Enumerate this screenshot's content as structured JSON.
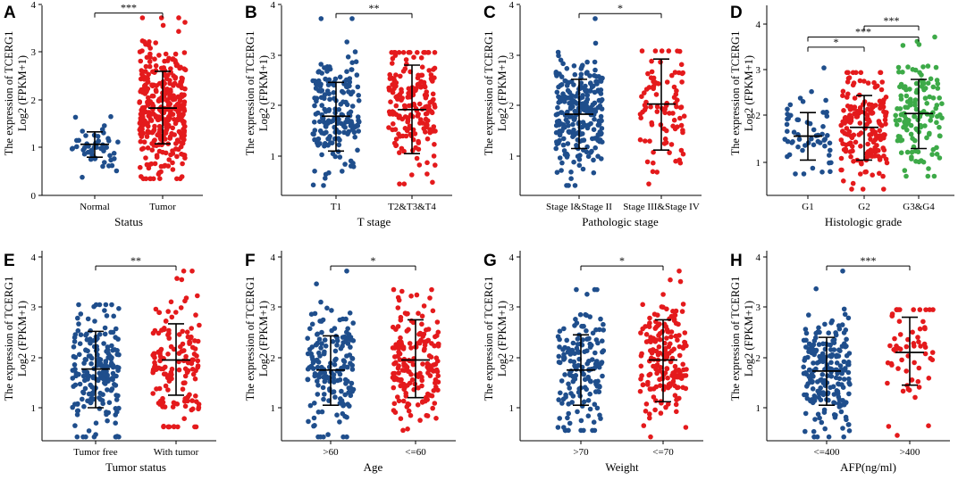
{
  "colors": {
    "blue": "#1f4e8c",
    "red": "#e41a1c",
    "green": "#3daa48",
    "axis": "#000000"
  },
  "chart_data": [
    {
      "type": "scatter",
      "panel": "A",
      "title": "",
      "ylabel_main": "The expression  of TCERG1",
      "ylabel_sub": "Log2 (FPKM+1)",
      "xlabel": "Status",
      "yticks": [
        0,
        1,
        2,
        3,
        4
      ],
      "ylim": [
        0,
        4
      ],
      "groups": [
        {
          "name": "Normal",
          "color": "blue",
          "n": 50,
          "mean": 1.07,
          "sd": 0.28,
          "min": 0.38,
          "max": 1.65,
          "err_low": 0.8,
          "err_high": 1.33
        },
        {
          "name": "Tumor",
          "color": "red",
          "n": 370,
          "mean": 1.83,
          "sd": 0.68,
          "min": 0.35,
          "max": 3.72,
          "err_low": 1.08,
          "err_high": 2.6
        }
      ],
      "significance": [
        {
          "from": 0,
          "to": 1,
          "label": "***",
          "y": 3.82
        }
      ]
    },
    {
      "type": "scatter",
      "panel": "B",
      "title": "",
      "ylabel_main": "The expression  of TCERG1",
      "ylabel_sub": "Log2 (FPKM+1)",
      "xlabel": "T stage",
      "yticks": [
        1,
        2,
        3,
        4
      ],
      "ylim": [
        0.4,
        4
      ],
      "groups": [
        {
          "name": "T1",
          "color": "blue",
          "n": 180,
          "mean": 1.79,
          "sd": 0.6,
          "min": 0.42,
          "max": 3.72,
          "err_low": 1.1,
          "err_high": 2.46
        },
        {
          "name": "T2&T3&T4",
          "color": "red",
          "n": 190,
          "mean": 1.92,
          "sd": 0.62,
          "min": 0.45,
          "max": 3.05,
          "err_low": 1.05,
          "err_high": 2.8
        }
      ],
      "significance": [
        {
          "from": 0,
          "to": 1,
          "label": "**",
          "y": 3.82
        }
      ]
    },
    {
      "type": "scatter",
      "panel": "C",
      "title": "",
      "ylabel_main": "The expression  of TCERG1",
      "ylabel_sub": "Log2 (FPKM+1)",
      "xlabel": "Pathologic stage",
      "yticks": [
        1,
        2,
        3,
        4
      ],
      "ylim": [
        0.4,
        4
      ],
      "groups": [
        {
          "name": "Stage I&Stage II",
          "color": "blue",
          "n": 255,
          "mean": 1.83,
          "sd": 0.6,
          "min": 0.42,
          "max": 3.72,
          "err_low": 1.15,
          "err_high": 2.52
        },
        {
          "name": "Stage III&Stage IV",
          "color": "red",
          "n": 90,
          "mean": 2.03,
          "sd": 0.6,
          "min": 0.45,
          "max": 3.08,
          "err_low": 1.12,
          "err_high": 2.92
        }
      ],
      "significance": [
        {
          "from": 0,
          "to": 1,
          "label": "*",
          "y": 3.82
        }
      ]
    },
    {
      "type": "scatter",
      "panel": "D",
      "title": "",
      "ylabel_main": "The expression  of TCERG1",
      "ylabel_sub": "Log2 (FPKM+1)",
      "xlabel": "Histologic grade",
      "yticks": [
        1,
        2,
        3,
        4
      ],
      "ylim": [
        0.4,
        4.3
      ],
      "groups": [
        {
          "name": "G1",
          "color": "blue",
          "n": 55,
          "mean": 1.57,
          "sd": 0.45,
          "min": 0.75,
          "max": 3.05,
          "err_low": 1.05,
          "err_high": 2.08
        },
        {
          "name": "G2",
          "color": "red",
          "n": 175,
          "mean": 1.76,
          "sd": 0.6,
          "min": 0.42,
          "max": 2.95,
          "err_low": 1.05,
          "err_high": 2.45
        },
        {
          "name": "G3&G4",
          "color": "green",
          "n": 135,
          "mean": 2.06,
          "sd": 0.6,
          "min": 0.7,
          "max": 3.72,
          "err_low": 1.3,
          "err_high": 2.8
        }
      ],
      "significance": [
        {
          "from": 0,
          "to": 1,
          "label": "*",
          "y": 3.5
        },
        {
          "from": 0,
          "to": 2,
          "label": "***",
          "y": 3.72
        },
        {
          "from": 1,
          "to": 2,
          "label": "***",
          "y": 3.96
        }
      ]
    },
    {
      "type": "scatter",
      "panel": "E",
      "title": "",
      "ylabel_main": "The expression  of TCERG1",
      "ylabel_sub": "Log2 (FPKM+1)",
      "xlabel": "Tumor status",
      "yticks": [
        1,
        2,
        3,
        4
      ],
      "ylim": [
        0.4,
        4
      ],
      "groups": [
        {
          "name": "Tumor free",
          "color": "blue",
          "n": 200,
          "mean": 1.77,
          "sd": 0.6,
          "min": 0.42,
          "max": 3.05,
          "err_low": 1.0,
          "err_high": 2.52
        },
        {
          "name": "With tumor",
          "color": "red",
          "n": 150,
          "mean": 1.95,
          "sd": 0.62,
          "min": 0.62,
          "max": 3.72,
          "err_low": 1.25,
          "err_high": 2.67
        }
      ],
      "significance": [
        {
          "from": 0,
          "to": 1,
          "label": "**",
          "y": 3.82
        }
      ]
    },
    {
      "type": "scatter",
      "panel": "F",
      "title": "",
      "ylabel_main": "The expression  of TCERG1",
      "ylabel_sub": "Log2 (FPKM+1)",
      "xlabel": "Age",
      "yticks": [
        1,
        2,
        3,
        4
      ],
      "ylim": [
        0.4,
        4
      ],
      "groups": [
        {
          "name": ">60",
          "color": "blue",
          "n": 170,
          "mean": 1.75,
          "sd": 0.6,
          "min": 0.42,
          "max": 3.72,
          "err_low": 1.05,
          "err_high": 2.43
        },
        {
          "name": "<=60",
          "color": "red",
          "n": 180,
          "mean": 1.95,
          "sd": 0.62,
          "min": 0.55,
          "max": 3.35,
          "err_low": 1.2,
          "err_high": 2.75
        }
      ],
      "significance": [
        {
          "from": 0,
          "to": 1,
          "label": "*",
          "y": 3.82
        }
      ]
    },
    {
      "type": "scatter",
      "panel": "G",
      "title": "",
      "ylabel_main": "The expression  of TCERG1",
      "ylabel_sub": "Log2 (FPKM+1)",
      "xlabel": "Weight",
      "yticks": [
        1,
        2,
        3,
        4
      ],
      "ylim": [
        0.4,
        4
      ],
      "groups": [
        {
          "name": ">70",
          "color": "blue",
          "n": 160,
          "mean": 1.75,
          "sd": 0.6,
          "min": 0.55,
          "max": 3.35,
          "err_low": 1.05,
          "err_high": 2.45
        },
        {
          "name": "<=70",
          "color": "red",
          "n": 175,
          "mean": 1.95,
          "sd": 0.62,
          "min": 0.42,
          "max": 3.72,
          "err_low": 1.12,
          "err_high": 2.75
        }
      ],
      "significance": [
        {
          "from": 0,
          "to": 1,
          "label": "*",
          "y": 3.82
        }
      ]
    },
    {
      "type": "scatter",
      "panel": "H",
      "title": "",
      "ylabel_main": "The expression  of TCERG1",
      "ylabel_sub": "Log2 (FPKM+1)",
      "xlabel": "AFP(ng/ml)",
      "yticks": [
        1,
        2,
        3,
        4
      ],
      "ylim": [
        0.4,
        4
      ],
      "groups": [
        {
          "name": "<=400",
          "color": "blue",
          "n": 210,
          "mean": 1.73,
          "sd": 0.6,
          "min": 0.42,
          "max": 3.72,
          "err_low": 1.05,
          "err_high": 2.4
        },
        {
          "name": ">400",
          "color": "red",
          "n": 60,
          "mean": 2.1,
          "sd": 0.55,
          "min": 0.45,
          "max": 2.95,
          "err_low": 1.45,
          "err_high": 2.8
        }
      ],
      "significance": [
        {
          "from": 0,
          "to": 1,
          "label": "***",
          "y": 3.82
        }
      ]
    }
  ]
}
